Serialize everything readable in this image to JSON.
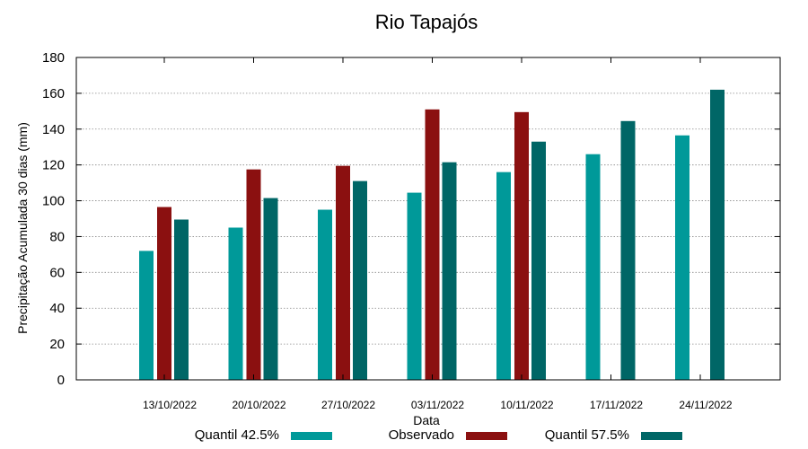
{
  "chart_data": {
    "type": "bar",
    "title": "Rio Tapajós",
    "xlabel": "Data",
    "ylabel": "Precipitação Acumulada 30 dias (mm)",
    "ylim": [
      0,
      180
    ],
    "yticks": [
      0,
      20,
      40,
      60,
      80,
      100,
      120,
      140,
      160,
      180
    ],
    "grid": true,
    "legend_position": "bottom",
    "categories": [
      "13/10/2022",
      "20/10/2022",
      "27/10/2022",
      "03/11/2022",
      "10/11/2022",
      "17/11/2022",
      "24/11/2022"
    ],
    "series": [
      {
        "name": "Quantil 42.5%",
        "color": "#009999",
        "values": [
          72,
          85,
          95,
          104.5,
          116,
          126,
          136.5
        ]
      },
      {
        "name": "Observado",
        "color": "#8b1010",
        "values": [
          96.5,
          117.5,
          119.5,
          151,
          149.5,
          null,
          null
        ]
      },
      {
        "name": "Quantil 57.5%",
        "color": "#006666",
        "values": [
          89.5,
          101.5,
          111,
          121.5,
          133,
          144.5,
          162
        ]
      }
    ]
  }
}
